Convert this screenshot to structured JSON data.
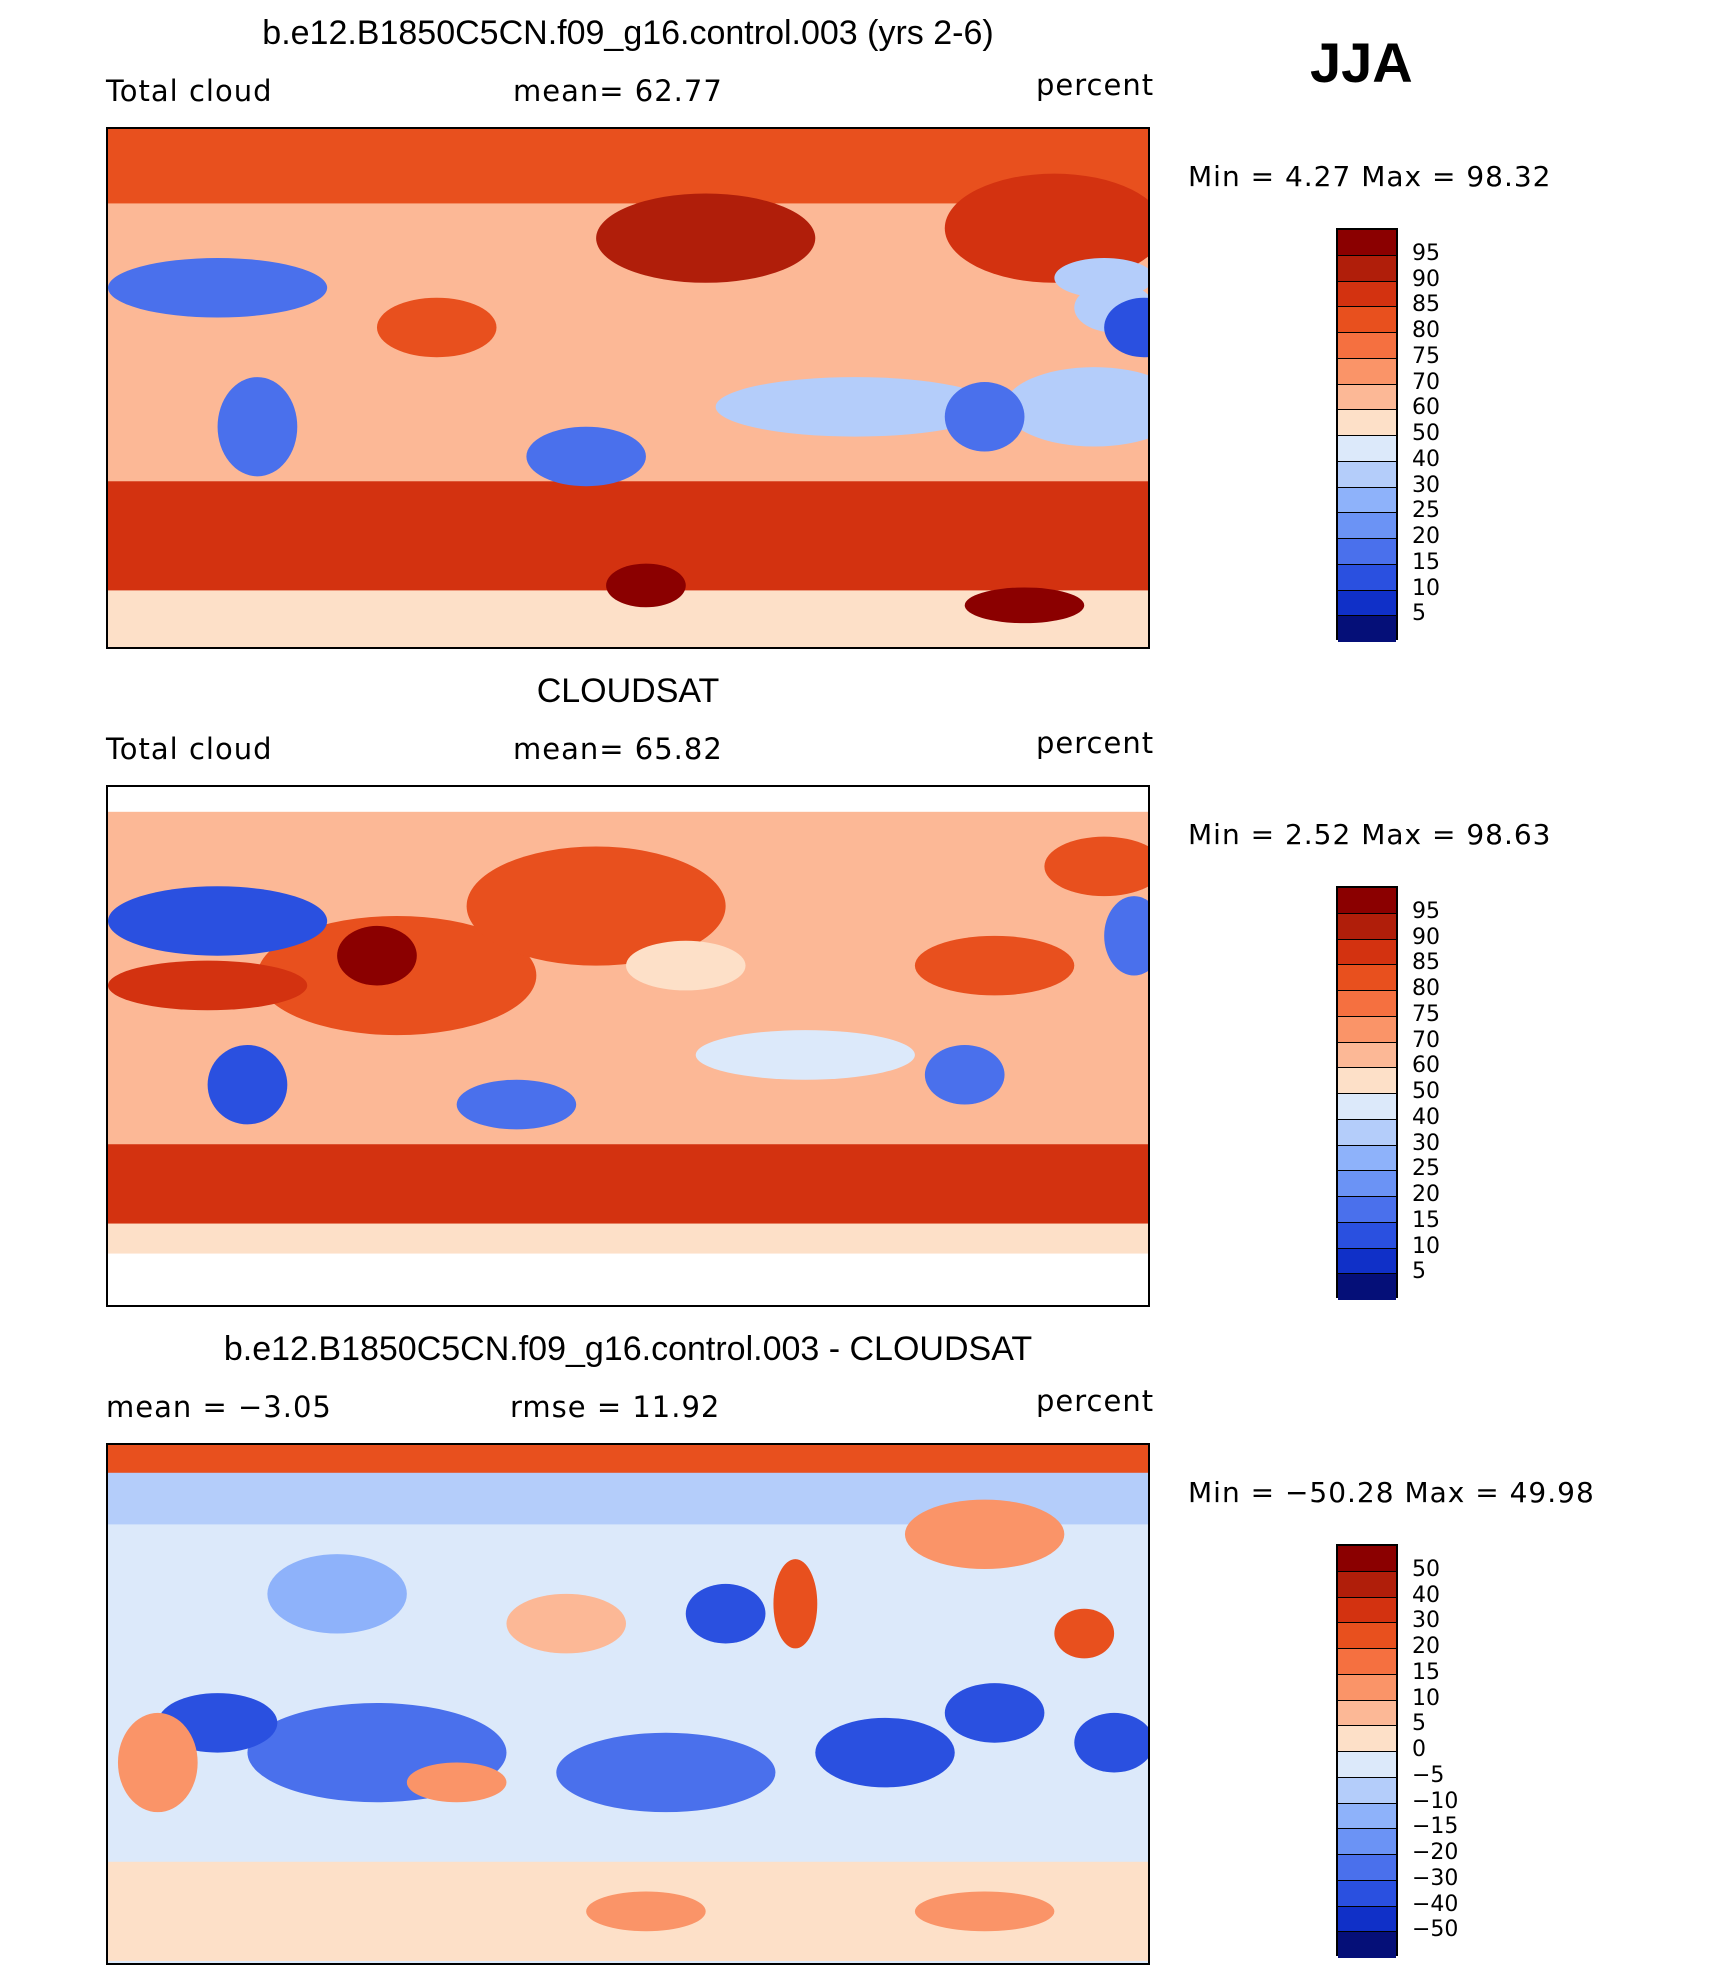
{
  "season": "JJA",
  "panels": [
    {
      "title": "b.e12.B1850C5CN.f09_g16.control.003 (yrs 2-6)",
      "left_label": "Total cloud",
      "center_label": "mean=   62.77",
      "right_label": "percent",
      "min_max": "Min =    4.27  Max =    98.32",
      "colorbar_labels": [
        "95",
        "90",
        "85",
        "80",
        "75",
        "70",
        "60",
        "50",
        "40",
        "30",
        "25",
        "20",
        "15",
        "10",
        "5"
      ],
      "colors": [
        "#8b0000",
        "#b01e0a",
        "#d33210",
        "#e8501e",
        "#f57040",
        "#fa9468",
        "#fcb896",
        "#fde0c8",
        "#fdf2e6",
        "#dce9fa",
        "#b4cdfa",
        "#8eb2fa",
        "#6b93f5",
        "#4a70ec",
        "#2a50e0",
        "#1030c8",
        "#0a1ca0",
        "#050f78"
      ],
      "bar_colors": [
        "#8b0000",
        "#b01e0a",
        "#d33210",
        "#e8501e",
        "#f57040",
        "#fa9468",
        "#fcb896",
        "#fde0c8",
        "#dce9fa",
        "#b4cdfa",
        "#8eb2fa",
        "#6b93f5",
        "#4a70ec",
        "#2a50e0",
        "#1030c8",
        "#050f78"
      ]
    },
    {
      "title": "CLOUDSAT",
      "left_label": "Total cloud",
      "center_label": "mean=   65.82",
      "right_label": "percent",
      "min_max": "Min =    2.52  Max =    98.63",
      "colorbar_labels": [
        "95",
        "90",
        "85",
        "80",
        "75",
        "70",
        "60",
        "50",
        "40",
        "30",
        "25",
        "20",
        "15",
        "10",
        "5"
      ],
      "bar_colors": [
        "#8b0000",
        "#b01e0a",
        "#d33210",
        "#e8501e",
        "#f57040",
        "#fa9468",
        "#fcb896",
        "#fde0c8",
        "#dce9fa",
        "#b4cdfa",
        "#8eb2fa",
        "#6b93f5",
        "#4a70ec",
        "#2a50e0",
        "#1030c8",
        "#050f78"
      ]
    },
    {
      "title": "b.e12.B1850C5CN.f09_g16.control.003 - CLOUDSAT",
      "left_label": "mean =   −3.05",
      "center_label": "rmse =   11.92",
      "right_label": "percent",
      "min_max": "Min = −50.28  Max =    49.98",
      "colorbar_labels": [
        "50",
        "40",
        "30",
        "20",
        "15",
        "10",
        "5",
        "0",
        "−5",
        "−10",
        "−15",
        "−20",
        "−30",
        "−40",
        "−50"
      ],
      "bar_colors": [
        "#8b0000",
        "#b01e0a",
        "#d33210",
        "#e8501e",
        "#f57040",
        "#fa9468",
        "#fcb896",
        "#fde0c8",
        "#dce9fa",
        "#b4cdfa",
        "#8eb2fa",
        "#6b93f5",
        "#4a70ec",
        "#2a50e0",
        "#1030c8",
        "#050f78"
      ]
    }
  ]
}
